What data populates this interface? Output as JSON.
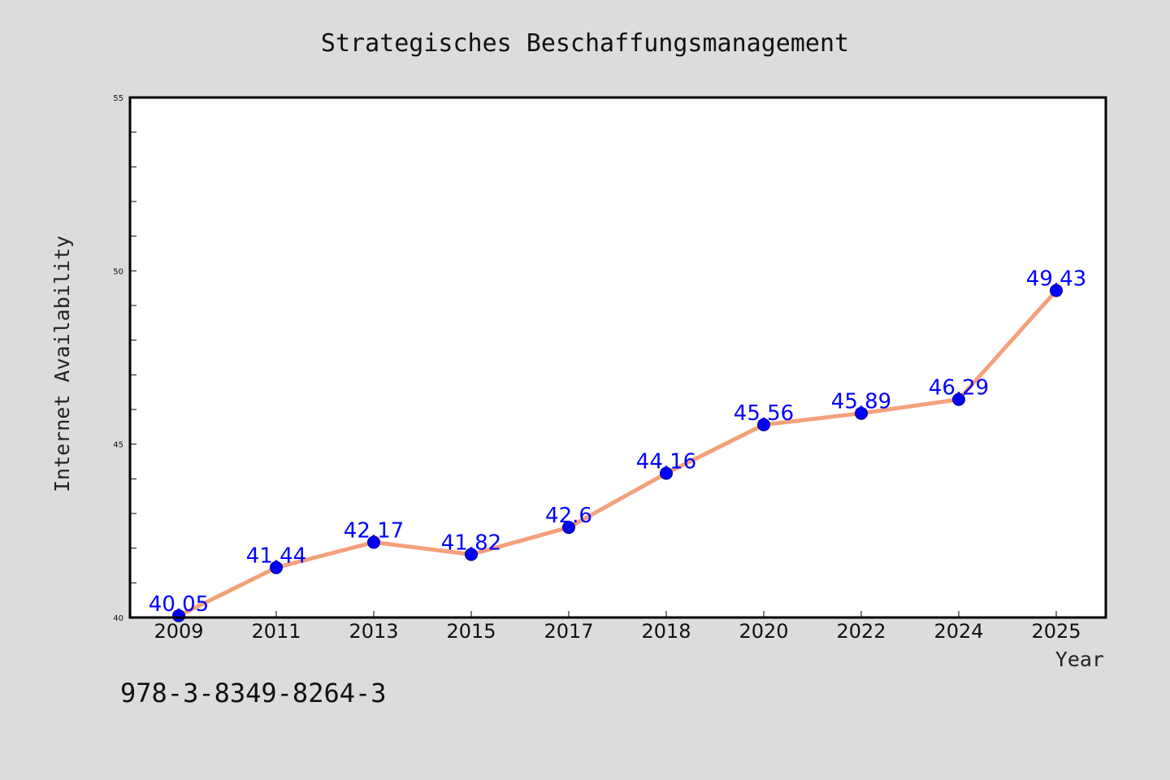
{
  "colors": {
    "background": "#dcdcdc",
    "plot_background": "#ffffff",
    "line": "#f4a07c",
    "marker": "#0000ff",
    "data_label": "#0000ff",
    "axis": "#000000"
  },
  "isbn": "978-3-8349-8264-3",
  "chart_data": {
    "type": "line",
    "title": "Strategisches Beschaffungsmanagement",
    "xlabel": "Year",
    "ylabel": "Internet Availability",
    "categories": [
      "2009",
      "2011",
      "2013",
      "2015",
      "2017",
      "2018",
      "2020",
      "2022",
      "2024",
      "2025"
    ],
    "series": [
      {
        "values": [
          40.05,
          41.44,
          42.17,
          41.82,
          42.6,
          44.16,
          45.56,
          45.89,
          46.29,
          49.43
        ],
        "labels": [
          "40.05",
          "41.44",
          "42.17",
          "41.82",
          "42.6",
          "44.16",
          "45.56",
          "45.89",
          "46.29",
          "49.43"
        ]
      }
    ],
    "ylim": [
      40,
      55
    ],
    "yticks": [
      "40",
      "45",
      "50",
      "55"
    ],
    "grid": false,
    "legend": "none"
  }
}
